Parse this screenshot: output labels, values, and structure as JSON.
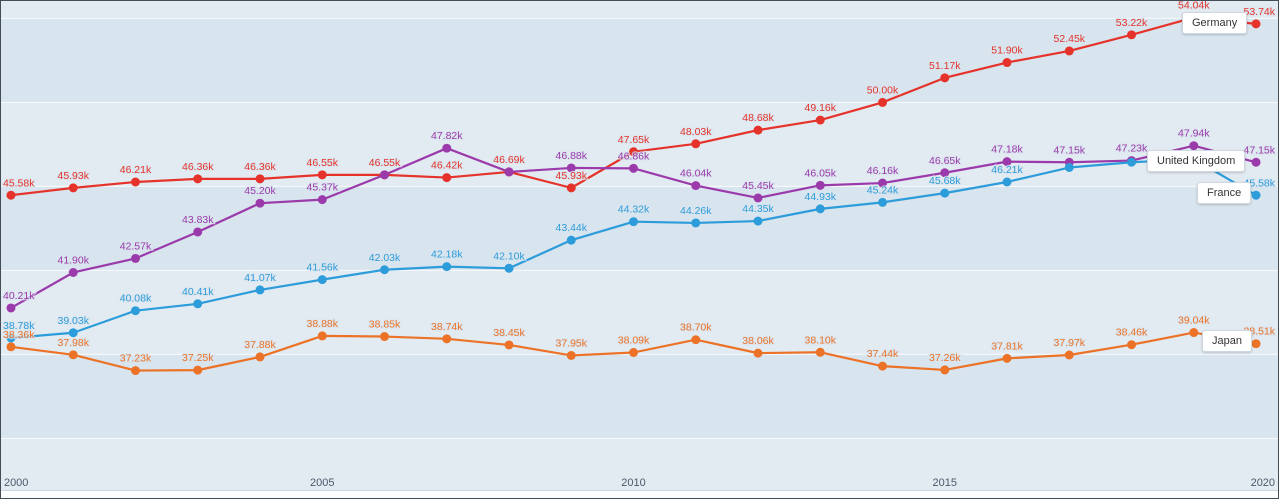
{
  "chart_data": {
    "type": "line",
    "title": "",
    "xlabel": "",
    "ylabel": "",
    "x": [
      2000,
      2001,
      2002,
      2003,
      2004,
      2005,
      2006,
      2007,
      2008,
      2009,
      2010,
      2011,
      2012,
      2013,
      2014,
      2015,
      2016,
      2017,
      2018,
      2019,
      2020
    ],
    "x_ticks": [
      {
        "year": 2000,
        "label": "2000"
      },
      {
        "year": 2005,
        "label": "2005"
      },
      {
        "year": 2010,
        "label": "2010"
      },
      {
        "year": 2015,
        "label": "2015"
      },
      {
        "year": 2020,
        "label": "2020"
      }
    ],
    "ylim": [
      31.16,
      54.83
    ],
    "gridlines": [
      34,
      38,
      42,
      46,
      50,
      54
    ],
    "grid": true,
    "legend_position": "end-of-line-tags",
    "value_suffix": "k",
    "series": [
      {
        "id": "germany",
        "name": "Germany",
        "color": "#e5332b",
        "values": [
          45.58,
          45.93,
          46.21,
          46.36,
          46.36,
          46.55,
          46.55,
          46.42,
          46.69,
          45.93,
          47.65,
          48.03,
          48.68,
          49.16,
          50.0,
          51.17,
          51.9,
          52.45,
          53.22,
          54.04,
          53.74
        ],
        "labels": [
          "45.58k",
          "45.93k",
          "46.21k",
          "46.36k",
          "46.36k",
          "46.55k",
          "46.55k",
          "46.42k",
          "46.69k",
          "45.93k",
          "47.65k",
          "48.03k",
          "48.68k",
          "49.16k",
          "50.00k",
          "51.17k",
          "51.90k",
          "52.45k",
          "53.22k",
          "54.04k",
          "53.74k"
        ]
      },
      {
        "id": "united-kingdom",
        "name": "United Kingdom",
        "color": "#9b3aab",
        "values": [
          40.21,
          41.9,
          42.57,
          43.83,
          45.2,
          45.37,
          46.55,
          47.82,
          46.69,
          46.88,
          46.86,
          46.04,
          45.45,
          46.05,
          46.16,
          46.65,
          47.18,
          47.15,
          47.23,
          47.94,
          47.15
        ],
        "labels": [
          "40.21k",
          "41.90k",
          "42.57k",
          "43.83k",
          "45.20k",
          "45.37k",
          "",
          "47.82k",
          "",
          "46.88k",
          "46.86k",
          "46.04k",
          "45.45k",
          "46.05k",
          "46.16k",
          "46.65k",
          "47.18k",
          "47.15k",
          "47.23k",
          "47.94k",
          "47.15k"
        ]
      },
      {
        "id": "france",
        "name": "France",
        "color": "#2d9cda",
        "values": [
          38.78,
          39.03,
          40.08,
          40.41,
          41.07,
          41.56,
          42.03,
          42.18,
          42.1,
          43.44,
          44.32,
          44.26,
          44.35,
          44.93,
          45.24,
          45.68,
          46.21,
          46.9,
          47.15,
          47.3,
          45.58
        ],
        "labels": [
          "38.78k",
          "39.03k",
          "40.08k",
          "40.41k",
          "41.07k",
          "41.56k",
          "42.03k",
          "42.18k",
          "42.10k",
          "43.44k",
          "44.32k",
          "44.26k",
          "44.35k",
          "44.93k",
          "45.24k",
          "45.68k",
          "46.21k",
          "",
          "",
          "",
          "45.58k"
        ]
      },
      {
        "id": "japan",
        "name": "Japan",
        "color": "#eb7226",
        "values": [
          38.36,
          37.98,
          37.23,
          37.25,
          37.88,
          38.88,
          38.85,
          38.74,
          38.45,
          37.95,
          38.09,
          38.7,
          38.06,
          38.1,
          37.44,
          37.26,
          37.81,
          37.97,
          38.46,
          39.04,
          38.51
        ],
        "labels": [
          "38.36k",
          "37.98k",
          "37.23k",
          "37.25k",
          "37.88k",
          "38.88k",
          "38.85k",
          "38.74k",
          "38.45k",
          "37.95k",
          "38.09k",
          "38.70k",
          "38.06k",
          "38.10k",
          "37.44k",
          "37.26k",
          "37.81k",
          "37.97k",
          "38.46k",
          "39.04k",
          "38.51k"
        ]
      }
    ]
  }
}
